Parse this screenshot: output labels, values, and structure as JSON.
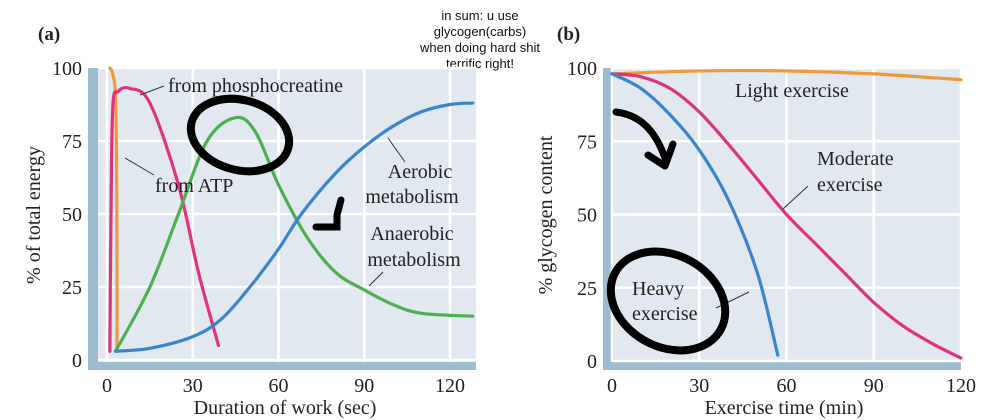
{
  "note": {
    "lines": [
      "in sum: u use",
      "glycogen(carbs)",
      "when doing hard shit",
      "terrific right!"
    ]
  },
  "colors": {
    "plot_bg": "#e1e8ef",
    "axis_strip": "#9cbcd0",
    "grid": "#ffffff",
    "orange": "#ef9a3a",
    "magenta": "#e0337f",
    "green": "#4cb050",
    "blue": "#3a85cc",
    "ink": "#000000"
  },
  "chart_data": [
    {
      "panel_label": "(a)",
      "type": "line",
      "xlabel": "Duration of work (sec)",
      "ylabel": "% of total energy",
      "xlim": [
        -4,
        129
      ],
      "ylim": [
        -3,
        100
      ],
      "xticks": [
        "0",
        "30",
        "60",
        "90",
        "120"
      ],
      "yticks": [
        "0",
        "25",
        "50",
        "75",
        "100"
      ],
      "grid": true,
      "series": [
        {
          "name": "from ATP",
          "color": "orange",
          "x": [
            1,
            2,
            3,
            3.4,
            3.5,
            3.5
          ],
          "y": [
            100,
            98,
            90,
            60,
            30,
            3
          ]
        },
        {
          "name": "from phosphocreatine",
          "color": "magenta",
          "x": [
            1,
            1.3,
            2,
            4,
            8,
            15,
            25,
            32,
            39
          ],
          "y": [
            3,
            40,
            86,
            92,
            93,
            88,
            60,
            30,
            5
          ]
        },
        {
          "name": "Anaerobic metabolism",
          "color": "green",
          "x": [
            3,
            15,
            25,
            35,
            45,
            52,
            60,
            70,
            80,
            90,
            100,
            110,
            128
          ],
          "y": [
            3,
            25,
            50,
            75,
            83,
            78,
            60,
            42,
            30,
            24,
            19,
            16,
            15
          ]
        },
        {
          "name": "Aerobic metabolism",
          "color": "blue",
          "x": [
            3,
            15,
            30,
            40,
            50,
            60,
            68,
            80,
            90,
            100,
            110,
            120,
            128
          ],
          "y": [
            3,
            4,
            8,
            14,
            25,
            38,
            50,
            64,
            73,
            80,
            85,
            87.5,
            88
          ]
        }
      ]
    },
    {
      "panel_label": "(b)",
      "type": "line",
      "xlabel": "Exercise time (min)",
      "ylabel": "% glycogen content",
      "xlim": [
        -3,
        120
      ],
      "ylim": [
        -3,
        100
      ],
      "xticks": [
        "0",
        "30",
        "60",
        "90",
        "120"
      ],
      "yticks": [
        "0",
        "25",
        "50",
        "75",
        "100"
      ],
      "grid": true,
      "series": [
        {
          "name": "Light exercise",
          "color": "orange",
          "x": [
            0,
            30,
            60,
            90,
            120
          ],
          "y": [
            98,
            99,
            99,
            98,
            96
          ]
        },
        {
          "name": "Moderate exercise",
          "color": "magenta",
          "x": [
            0,
            10,
            20,
            30,
            40,
            50,
            60,
            70,
            80,
            90,
            100,
            110,
            120
          ],
          "y": [
            98,
            97,
            93,
            85,
            74,
            62,
            50,
            40,
            30,
            20,
            12,
            6,
            1
          ]
        },
        {
          "name": "Heavy exercise",
          "color": "blue",
          "x": [
            0,
            10,
            20,
            30,
            40,
            50,
            57
          ],
          "y": [
            98,
            93,
            84,
            72,
            55,
            30,
            2
          ]
        }
      ]
    }
  ]
}
